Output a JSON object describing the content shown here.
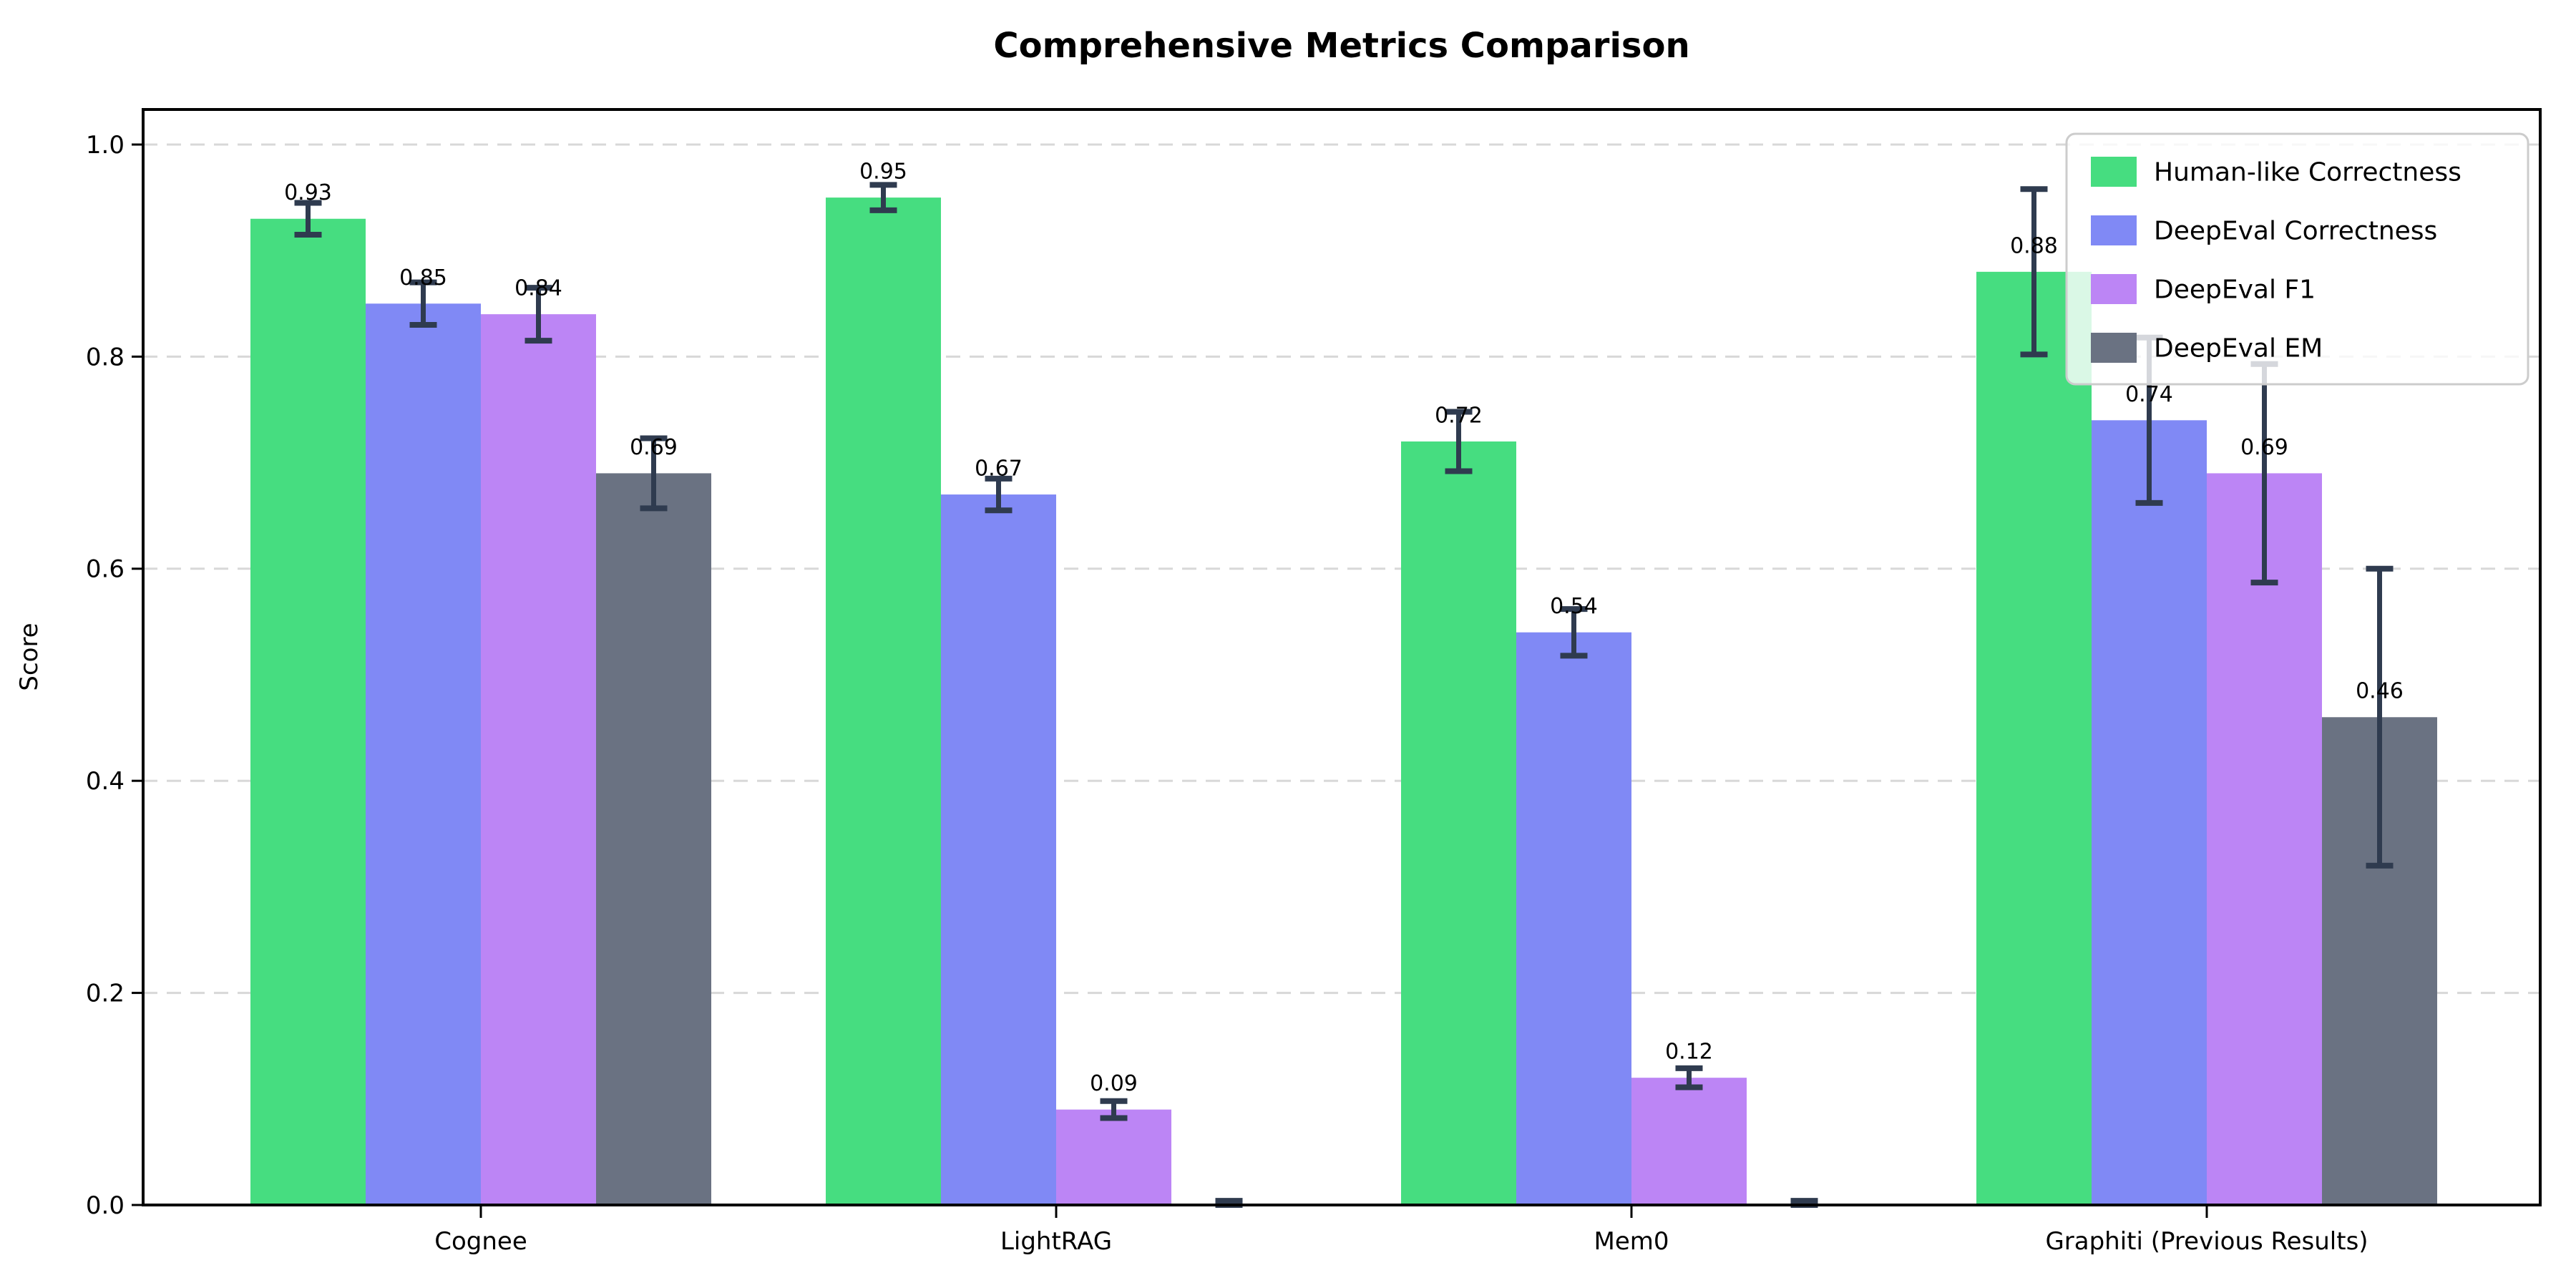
{
  "title": "Comprehensive Metrics Comparison",
  "chart_data": {
    "type": "bar",
    "title": "Comprehensive Metrics Comparison",
    "xlabel": "",
    "ylabel": "Score",
    "ylim": [
      0.0,
      1.033
    ],
    "yticks": [
      "0.0",
      "0.2",
      "0.4",
      "0.6",
      "0.8",
      "1.0"
    ],
    "grid": "horizontal dashed",
    "legend_position": "upper right",
    "background_color": "#ffffff",
    "error_bar_color": "#2f3b4f",
    "categories": [
      "Cognee",
      "LightRAG",
      "Mem0",
      "Graphiti (Previous Results)"
    ],
    "series": [
      {
        "name": "Human-like Correctness",
        "color": "#46dd80",
        "values": [
          0.93,
          0.95,
          0.72,
          0.88
        ],
        "errors": [
          0.015,
          0.012,
          0.028,
          0.078
        ],
        "labels": [
          "0.93",
          "0.95",
          "0.72",
          "0.88"
        ]
      },
      {
        "name": "DeepEval Correctness",
        "color": "#8089f5",
        "values": [
          0.85,
          0.67,
          0.54,
          0.74
        ],
        "errors": [
          0.02,
          0.015,
          0.022,
          0.078
        ],
        "labels": [
          "0.85",
          "0.67",
          "0.54",
          "0.74"
        ]
      },
      {
        "name": "DeepEval F1",
        "color": "#bc85f5",
        "values": [
          0.84,
          0.09,
          0.12,
          0.69
        ],
        "errors": [
          0.025,
          0.008,
          0.009,
          0.103
        ],
        "labels": [
          "0.84",
          "0.09",
          "0.12",
          "0.69"
        ]
      },
      {
        "name": "DeepEval EM",
        "color": "#6a7282",
        "values": [
          0.69,
          0.0,
          0.0,
          0.46
        ],
        "errors": [
          0.033,
          0.004,
          0.004,
          0.14
        ],
        "labels": [
          "0.69",
          "",
          "",
          "0.46"
        ]
      }
    ]
  }
}
